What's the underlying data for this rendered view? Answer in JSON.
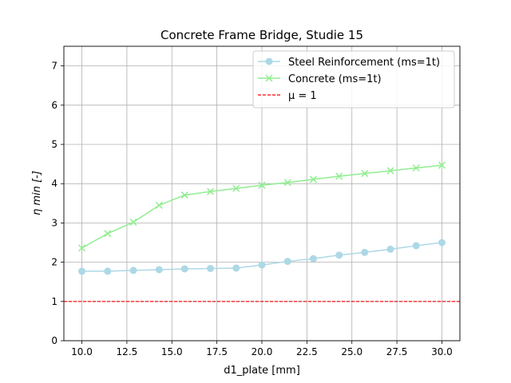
{
  "chart_data": {
    "type": "line",
    "title": "Concrete Frame Bridge, Studie 15",
    "xlabel": "d1_plate [mm]",
    "ylabel": "η min [-]",
    "xlim": [
      9.0,
      31.0
    ],
    "ylim": [
      0,
      7.5
    ],
    "xticks": [
      10.0,
      12.5,
      15.0,
      17.5,
      20.0,
      22.5,
      25.0,
      27.5,
      30.0
    ],
    "xtick_labels": [
      "10.0",
      "12.5",
      "15.0",
      "17.5",
      "20.0",
      "22.5",
      "25.0",
      "27.5",
      "30.0"
    ],
    "yticks": [
      0,
      1,
      2,
      3,
      4,
      5,
      6,
      7
    ],
    "ytick_labels": [
      "0",
      "1",
      "2",
      "3",
      "4",
      "5",
      "6",
      "7"
    ],
    "grid": true,
    "legend_position": "top-right",
    "x": [
      10.0,
      11.43,
      12.86,
      14.29,
      15.71,
      17.14,
      18.57,
      20.0,
      21.43,
      22.86,
      24.29,
      25.71,
      27.14,
      28.57,
      30.0
    ],
    "series": [
      {
        "name": "Steel Reinforcement (ms=1t)",
        "color": "#add8e6",
        "marker": "circle",
        "values": [
          1.77,
          1.77,
          1.79,
          1.81,
          1.83,
          1.84,
          1.85,
          1.93,
          2.02,
          2.09,
          2.18,
          2.25,
          2.33,
          2.42,
          2.5
        ]
      },
      {
        "name": "Concrete (ms=1t)",
        "color": "#90ee90",
        "marker": "x",
        "values": [
          2.36,
          2.73,
          3.02,
          3.45,
          3.71,
          3.8,
          3.88,
          3.96,
          4.03,
          4.11,
          4.19,
          4.26,
          4.33,
          4.4,
          4.47
        ]
      }
    ],
    "hline": {
      "label": "μ = 1",
      "value": 1,
      "color": "#ff0000",
      "style": "dashed"
    }
  }
}
